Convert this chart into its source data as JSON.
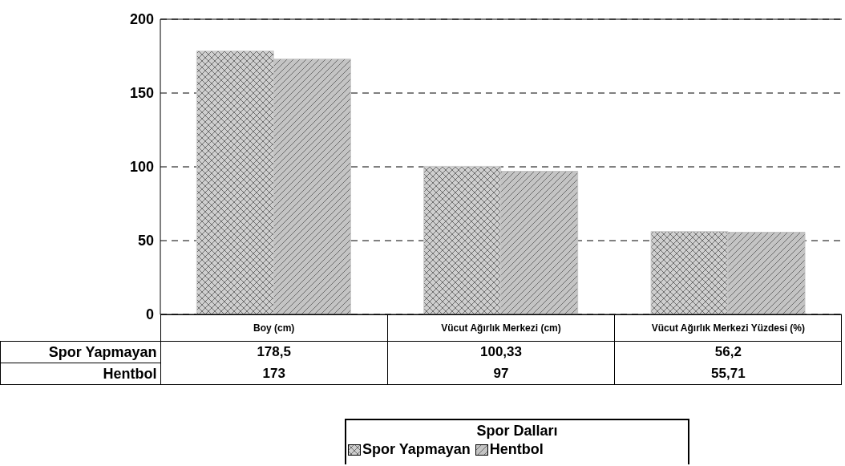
{
  "chart_data": {
    "type": "bar",
    "categories": [
      "Boy (cm)",
      "Vücut Ağırlık Merkezi (cm)",
      "Vücut Ağırlık Merkezi Yüzdesi (%)"
    ],
    "series": [
      {
        "name": "Spor Yapmayan",
        "color": "#cfcfcf",
        "values": [
          178.5,
          100.33,
          56.2
        ],
        "value_labels": [
          "178,5",
          "100,33",
          "56,2"
        ]
      },
      {
        "name": "Hentbol",
        "color": "#c4c4c4",
        "values": [
          173,
          97,
          55.71
        ],
        "value_labels": [
          "173",
          "97",
          "55,71"
        ]
      }
    ],
    "ylim": [
      0,
      200
    ],
    "yticks": [
      0,
      50,
      100,
      150,
      200
    ],
    "grid": "y",
    "legend": "bottom",
    "legend_title": "Spor Dalları"
  }
}
